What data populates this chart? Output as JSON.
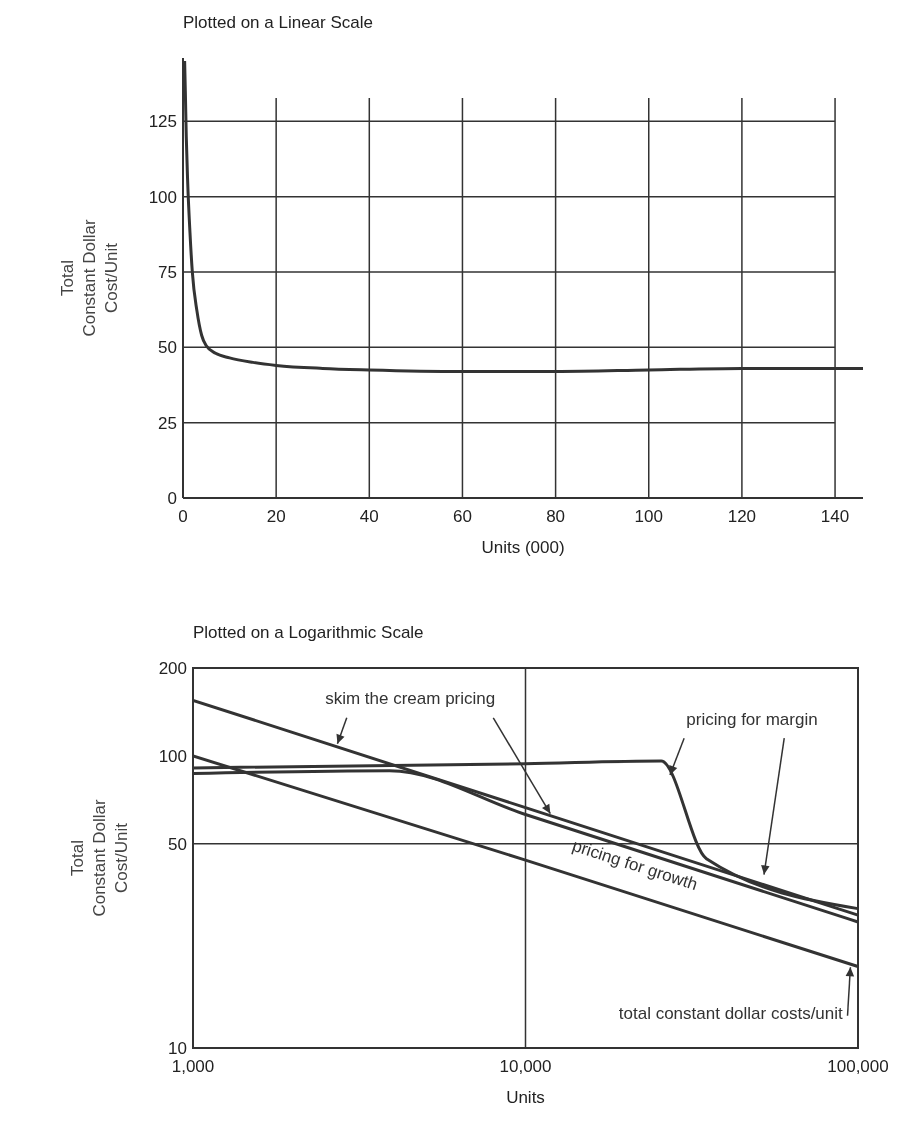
{
  "chart_data": [
    {
      "type": "line",
      "title": "Plotted on a Linear Scale",
      "xlabel": "Units (000)",
      "ylabel": "Total\nConstant Dollar\nCost/Unit",
      "xlim": [
        0,
        146
      ],
      "ylim": [
        0,
        146
      ],
      "xticks": [
        0,
        20,
        40,
        60,
        80,
        100,
        120,
        140
      ],
      "yticks": [
        0,
        25,
        50,
        75,
        100,
        125
      ],
      "grid": true,
      "series": [
        {
          "color": "#333333",
          "x": [
            0.35,
            0.5,
            0.7,
            1,
            1.5,
            2,
            3,
            4,
            5,
            7,
            10,
            15,
            20,
            30,
            40,
            60,
            80,
            100,
            120,
            140,
            146
          ],
          "values": [
            145,
            135,
            120,
            105,
            88,
            75,
            62,
            54,
            50.5,
            48,
            46.5,
            45,
            44,
            43,
            42.5,
            42,
            42,
            42.5,
            43,
            43,
            43
          ]
        }
      ]
    },
    {
      "type": "line",
      "title": "Plotted on a Logarithmic Scale",
      "xlabel": "Units",
      "ylabel": "Total\nConstant Dollar\nCost/Unit",
      "log": "xy",
      "xlim": [
        1000,
        100000
      ],
      "ylim": [
        10,
        200
      ],
      "xticks": [
        {
          "value": 1000,
          "label": "1,000"
        },
        {
          "value": 10000,
          "label": "10,000"
        },
        {
          "value": 100000,
          "label": "100,000"
        }
      ],
      "yticks": [
        10,
        50,
        100,
        200
      ],
      "ref_lines": [
        {
          "axis": "x",
          "value": 10000
        },
        {
          "axis": "y",
          "value": 50
        }
      ],
      "series": [
        {
          "name": "total constant dollar costs/unit",
          "color": "#333333",
          "x": [
            1000,
            10000,
            100000
          ],
          "values": [
            100,
            44,
            19
          ]
        },
        {
          "name": "skim the cream pricing",
          "color": "#333333",
          "x": [
            1000,
            10000,
            100000
          ],
          "values": [
            155,
            66.5,
            28.5
          ]
        },
        {
          "name": "pricing for margin",
          "color": "#333333",
          "x": [
            1000,
            10000,
            25600,
            35000,
            100000
          ],
          "values": [
            91,
            94,
            96,
            44.5,
            30
          ]
        },
        {
          "name": "pricing for growth",
          "color": "#333333",
          "x": [
            1000,
            3900,
            10000,
            100000
          ],
          "values": [
            87,
            89,
            63,
            27
          ]
        }
      ]
    }
  ]
}
